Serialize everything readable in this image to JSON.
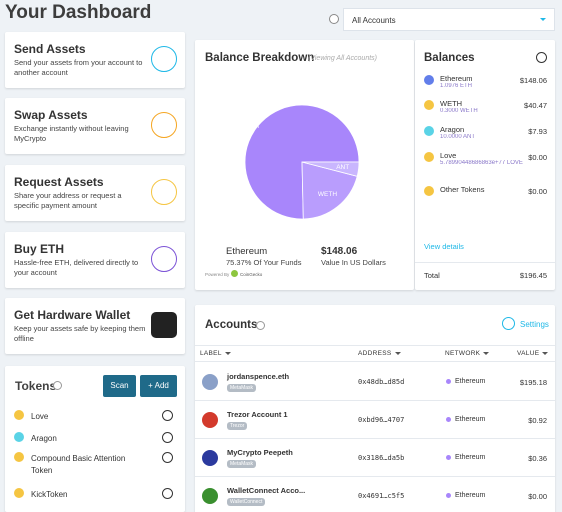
{
  "header": {
    "title": "Your Dashboard",
    "account_selector": "All Accounts"
  },
  "actions": [
    {
      "title": "Send Assets",
      "description": "Send your assets from your account to another account"
    },
    {
      "title": "Swap Assets",
      "description": "Exchange instantly without leaving MyCrypto"
    },
    {
      "title": "Request Assets",
      "description": "Share your address or request a specific payment amount"
    },
    {
      "title": "Buy ETH",
      "description": "Hassle-free ETH, delivered directly to your account"
    },
    {
      "title": "Get Hardware Wallet",
      "description": "Keep your assets safe by keeping them offline"
    }
  ],
  "tokens": {
    "title": "Tokens",
    "scan": "Scan",
    "add": "+ Add",
    "items": [
      "Love",
      "Aragon",
      "Compound Basic Attention Token",
      "KickToken"
    ]
  },
  "balance_breakdown": {
    "title": "Balance Breakdown",
    "subtitle": "(Viewing All Accounts)",
    "pie": {
      "labels": [
        "ETH",
        "WETH",
        "ANT"
      ],
      "values": [
        148.06,
        40.47,
        7.93
      ],
      "colors": [
        "#a886fb",
        "#b99dfd",
        "#c9b6fe"
      ]
    },
    "asset": "Ethereum",
    "share": "75.37% Of Your Funds",
    "value": "$148.06",
    "value_caption": "Value In US Dollars",
    "powered_by": "Powered By",
    "provider": "CoinGecko"
  },
  "balances": {
    "title": "Balances",
    "items": [
      {
        "name": "Ethereum",
        "amount": "1.0976 ETH",
        "value": "$148.06"
      },
      {
        "name": "WETH",
        "amount": "0.3000 WETH",
        "value": "$40.47"
      },
      {
        "name": "Aragon",
        "amount": "10.0000 ANT",
        "value": "$7.93"
      },
      {
        "name": "Love",
        "amount": "5.78990448686863e+77 LOVE",
        "value": "$0.00"
      },
      {
        "name": "Other Tokens",
        "value": "$0.00"
      }
    ],
    "view_details": "View details",
    "total_label": "Total",
    "total": "$196.45"
  },
  "accounts": {
    "title": "Accounts",
    "settings": "Settings",
    "columns": [
      "LABEL",
      "ADDRESS",
      "NETWORK",
      "VALUE"
    ],
    "rows": [
      {
        "label": "jordanspence.eth",
        "wallet": "MetaMask",
        "address": "0x48db…d85d",
        "network": "Ethereum",
        "value": "$195.18"
      },
      {
        "label": "Trezor Account 1",
        "wallet": "Trezor",
        "address": "0xbd96…4707",
        "network": "Ethereum",
        "value": "$0.92"
      },
      {
        "label": "MyCrypto Peepeth",
        "wallet": "MetaMask",
        "address": "0x3186…da5b",
        "network": "Ethereum",
        "value": "$0.36"
      },
      {
        "label": "WalletConnect Acco...",
        "wallet": "WalletConnect",
        "address": "0x4691…c5f5",
        "network": "Ethereum",
        "value": "$0.00"
      }
    ]
  }
}
